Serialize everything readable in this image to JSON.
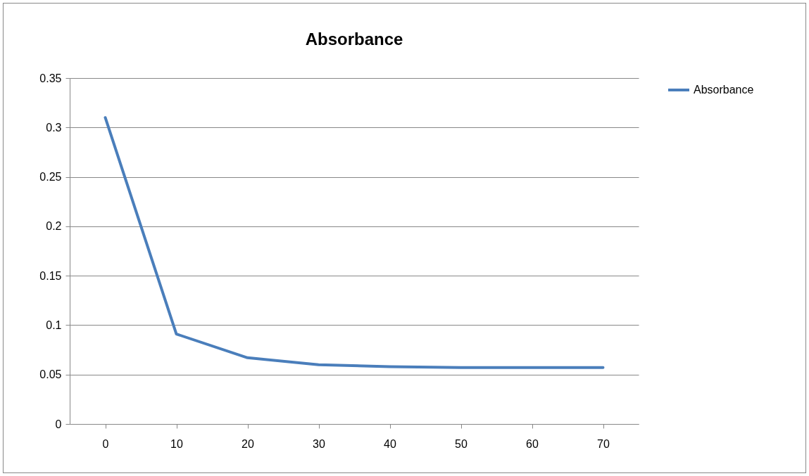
{
  "chart_data": {
    "type": "line",
    "title": "Absorbance",
    "categories": [
      "0",
      "10",
      "20",
      "30",
      "40",
      "50",
      "60",
      "70"
    ],
    "series": [
      {
        "name": "Absorbance",
        "color": "#4a7ebb",
        "values": [
          0.31,
          0.091,
          0.067,
          0.06,
          0.058,
          0.057,
          0.057,
          0.057
        ]
      }
    ],
    "ylim": [
      0,
      0.35
    ],
    "yticks": [
      0,
      0.05,
      0.1,
      0.15,
      0.2,
      0.25,
      0.3,
      0.35
    ],
    "grid": "y",
    "legend": "right",
    "marker": "none",
    "line_style": "solid"
  }
}
